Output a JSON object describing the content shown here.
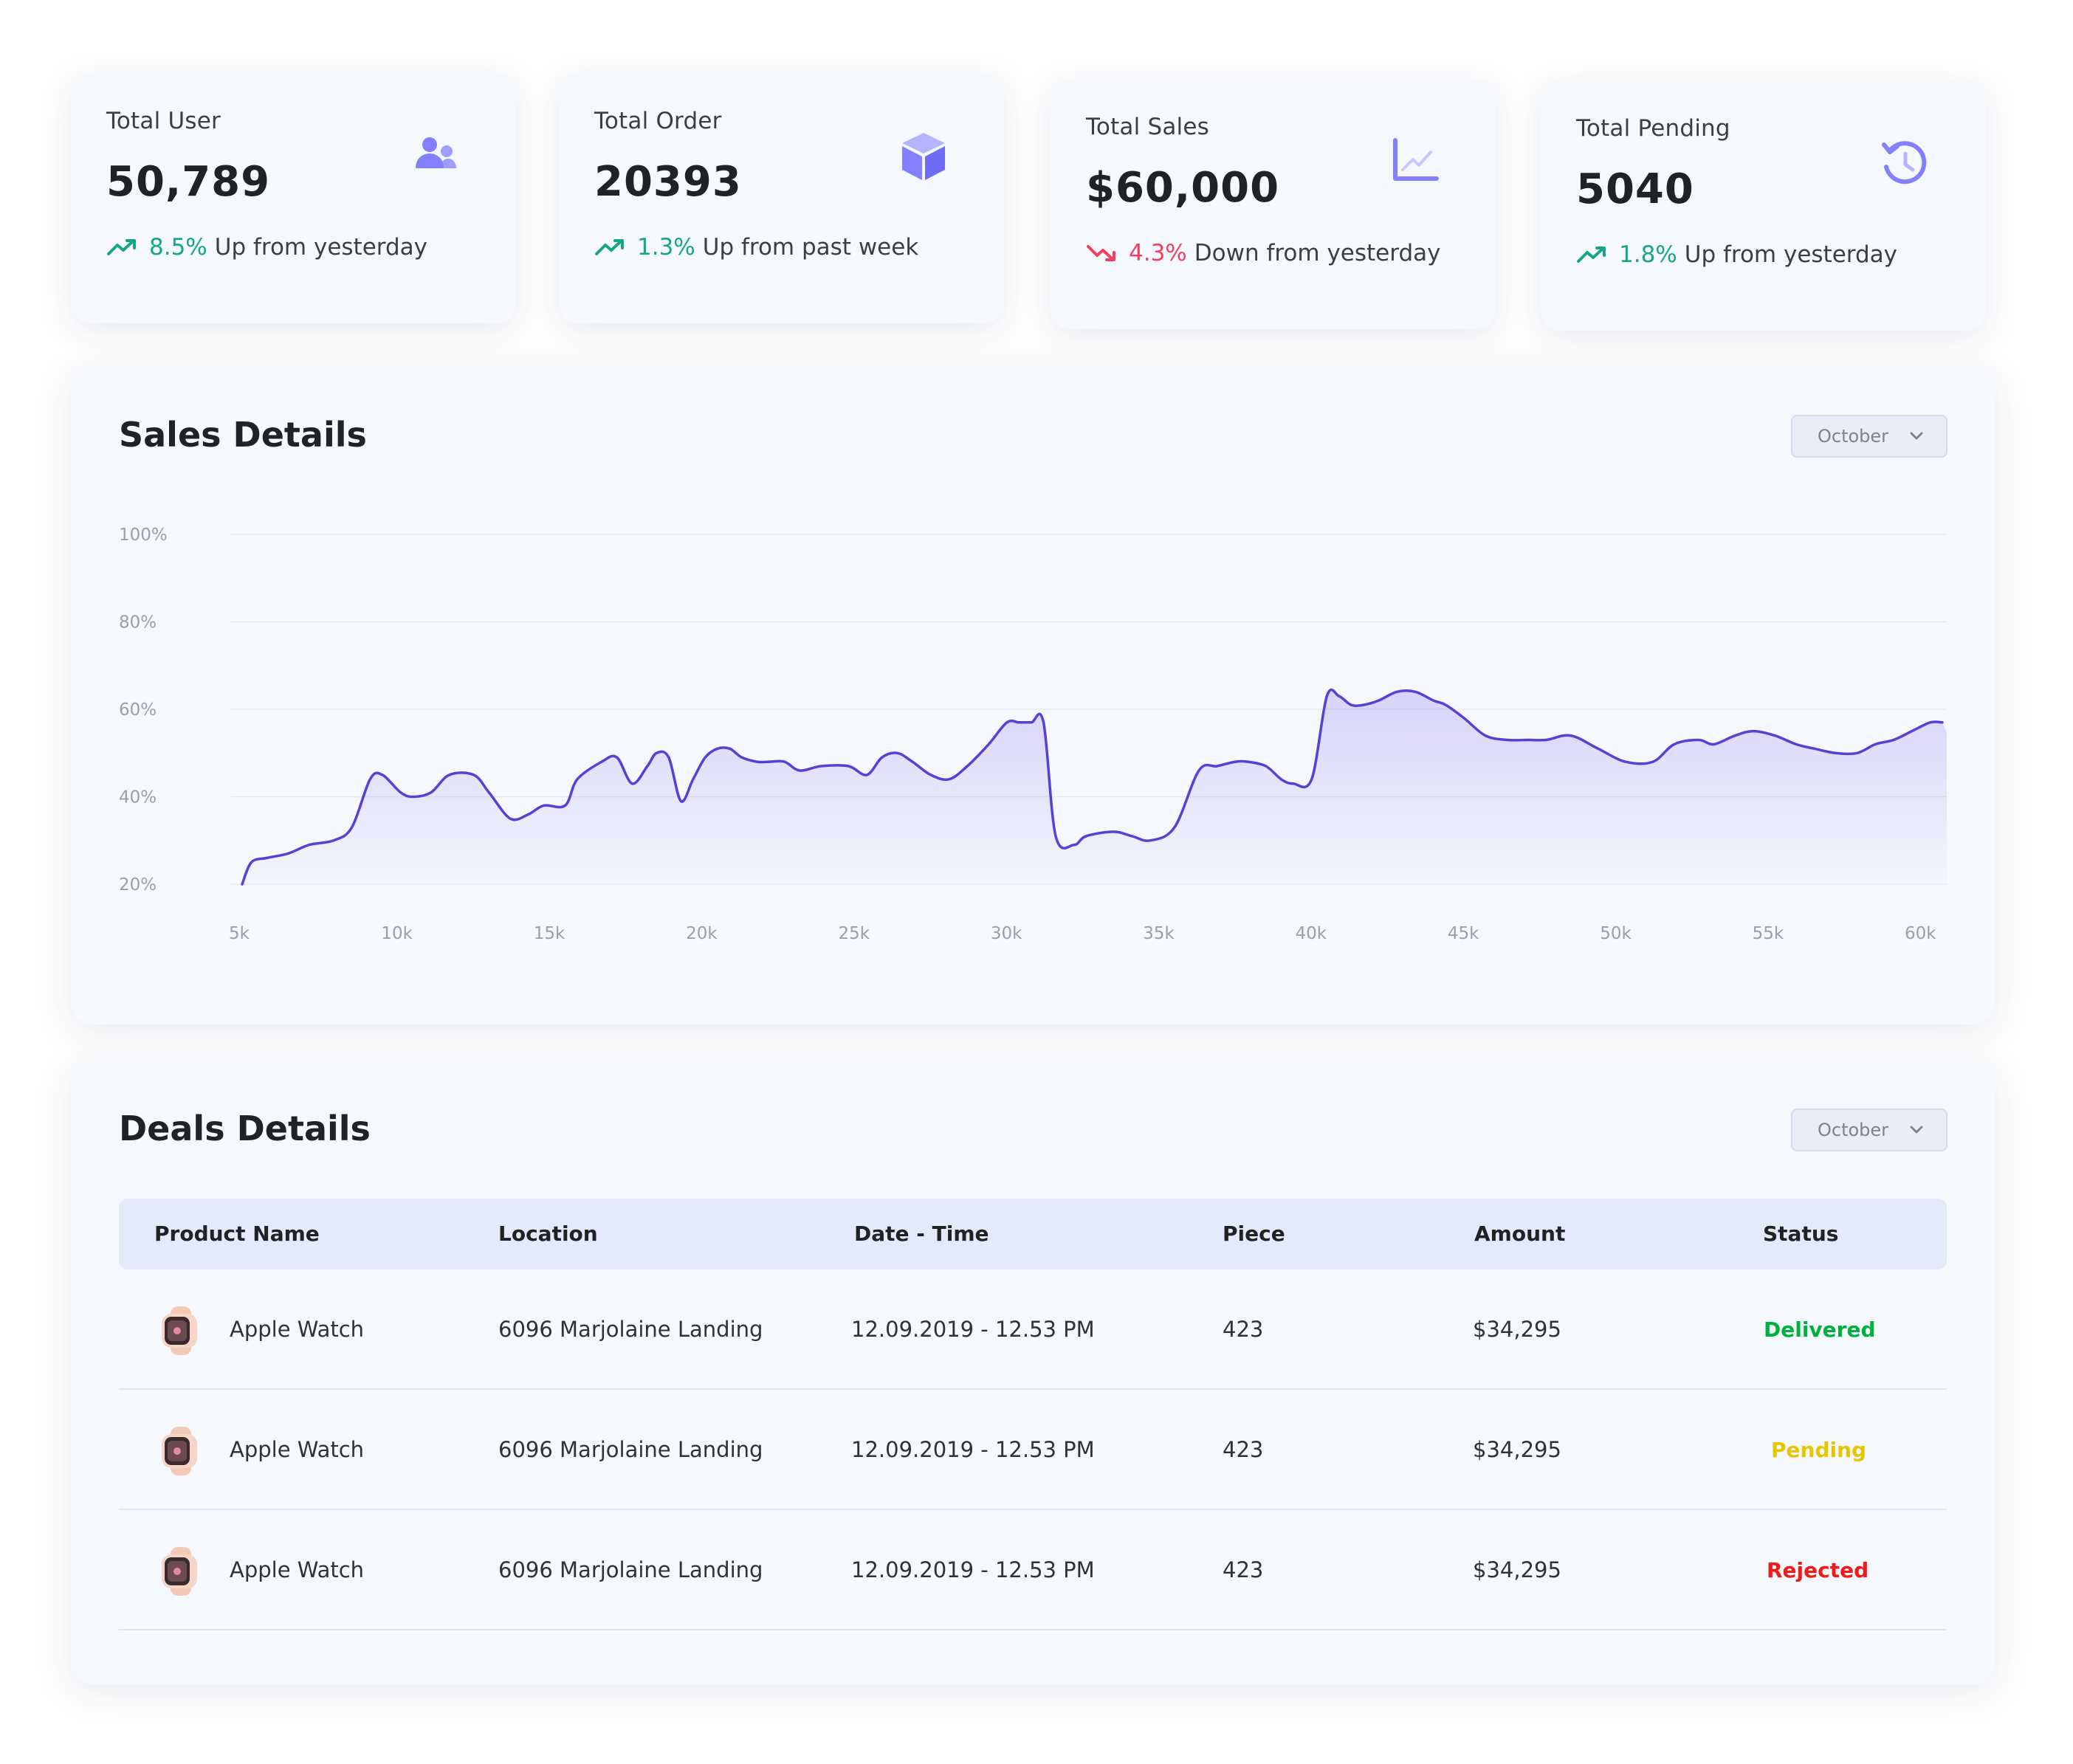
{
  "colors": {
    "accent": "#5a3fd6",
    "up": "#17a589",
    "down": "#f23f5f",
    "icon": "#8280ff",
    "delivered": "#00b140",
    "pending": "#e6c600",
    "rejected": "#ef1a1a"
  },
  "stats": [
    {
      "label": "Total User",
      "value": "50,789",
      "pct": "8.5%",
      "trend_text": "Up from yesterday",
      "direction": "up",
      "icon": "users-icon"
    },
    {
      "label": "Total Order",
      "value": "20393",
      "pct": "1.3%",
      "trend_text": "Up from past week",
      "direction": "up",
      "icon": "box-icon"
    },
    {
      "label": "Total Sales",
      "value": "$60,000",
      "pct": "4.3%",
      "trend_text": "Down from yesterday",
      "direction": "down",
      "icon": "line-chart-icon"
    },
    {
      "label": "Total Pending",
      "value": "5040",
      "pct": "1.8%",
      "trend_text": "Up from yesterday",
      "direction": "up",
      "icon": "history-icon"
    }
  ],
  "sales": {
    "title": "Sales Details",
    "month": "October"
  },
  "chart_data": {
    "type": "area",
    "title": "Sales Details",
    "xlabel": "",
    "ylabel": "",
    "x_ticks": [
      "5k",
      "10k",
      "15k",
      "20k",
      "25k",
      "30k",
      "35k",
      "40k",
      "45k",
      "50k",
      "55k",
      "60k"
    ],
    "y_ticks": [
      "20%",
      "40%",
      "60%",
      "80%",
      "100%"
    ],
    "xlim": [
      5,
      61
    ],
    "ylim": [
      20,
      100
    ],
    "grid": true,
    "series": [
      {
        "x": [
          5,
          5.3,
          5.8,
          6.5,
          7.2,
          8,
          8.6,
          9.2,
          9.6,
          10.2,
          10.6,
          11.2,
          11.8,
          12.6,
          13.1,
          13.8,
          14.4,
          14.9,
          15.6,
          16.0,
          16.8,
          17.3,
          17.8,
          18.3,
          18.6,
          19.0,
          19.4,
          19.8,
          20.2,
          20.6,
          21.0,
          21.4,
          21.9,
          22.3,
          22.8,
          23.3,
          24,
          24.9,
          25.5,
          26.0,
          26.5,
          27.0,
          27.6,
          28.2,
          28.8,
          29.5,
          30.1,
          30.5,
          30.9,
          31.3,
          31.7,
          32.3,
          32.7,
          33.6,
          34.2,
          34.8,
          35.6,
          36.4,
          37.0,
          37.6,
          38.0,
          38.6,
          39.1,
          39.5,
          40.1,
          40.6,
          41.0,
          41.4,
          41.8,
          42.3,
          42.9,
          43.5,
          44.1,
          44.5,
          45.1,
          45.8,
          46.5,
          47.2,
          47.8,
          48.6,
          49.5,
          50.4,
          51.3,
          52.0,
          52.8,
          53.3,
          54.0,
          54.6,
          55.3,
          56.0,
          56.6,
          57.3,
          58.0,
          58.6,
          59.2,
          59.8,
          60.4,
          60.8
        ],
        "y": [
          20,
          25,
          26,
          27,
          29,
          30,
          33,
          44,
          45,
          41,
          40,
          41,
          45,
          45,
          41,
          35,
          36,
          38,
          38,
          44,
          48,
          49,
          43,
          47,
          50,
          49,
          39,
          44,
          49,
          51,
          51,
          49,
          48,
          48,
          48,
          46,
          47,
          47,
          45,
          49,
          50,
          48,
          45,
          44,
          47,
          52,
          57,
          57,
          57,
          57,
          31,
          29,
          31,
          32,
          31,
          30,
          33,
          46,
          47,
          48,
          48,
          47,
          44,
          43,
          44,
          63,
          63,
          61,
          61,
          62,
          64,
          64,
          62,
          61,
          58,
          54,
          53,
          53,
          53,
          54,
          51,
          48,
          48,
          52,
          53,
          52,
          54,
          55,
          54,
          52,
          51,
          50,
          50,
          52,
          53,
          55,
          57,
          57
        ]
      }
    ]
  },
  "deals": {
    "title": "Deals Details",
    "month": "October",
    "columns": [
      "Product Name",
      "Location",
      "Date - Time",
      "Piece",
      "Amount",
      "Status"
    ],
    "rows": [
      {
        "product": "Apple Watch",
        "location": "6096 Marjolaine Landing",
        "datetime": "12.09.2019 - 12.53 PM",
        "piece": "423",
        "amount": "$34,295",
        "status": "Delivered",
        "status_key": "delivered"
      },
      {
        "product": "Apple Watch",
        "location": "6096 Marjolaine Landing",
        "datetime": "12.09.2019 - 12.53 PM",
        "piece": "423",
        "amount": "$34,295",
        "status": "Pending",
        "status_key": "pending"
      },
      {
        "product": "Apple Watch",
        "location": "6096 Marjolaine Landing",
        "datetime": "12.09.2019 - 12.53 PM",
        "piece": "423",
        "amount": "$34,295",
        "status": "Rejected",
        "status_key": "rejected"
      }
    ]
  }
}
